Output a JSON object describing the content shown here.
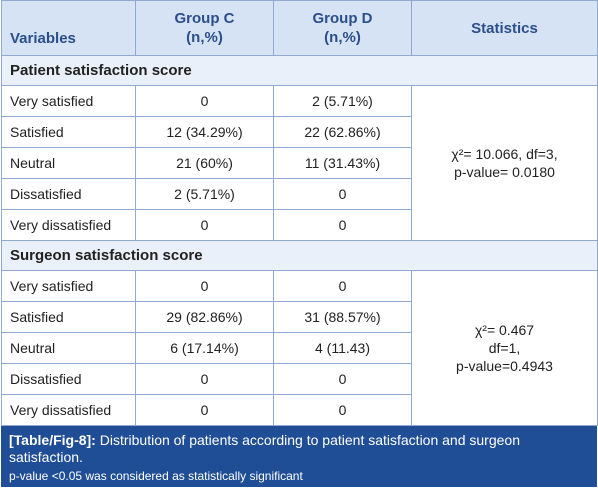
{
  "headers": {
    "variables": "Variables",
    "group_c": [
      "Group C",
      "(n,%)"
    ],
    "group_d": [
      "Group D",
      "(n,%)"
    ],
    "statistics": "Statistics"
  },
  "sections": [
    {
      "title": "Patient satisfaction score",
      "rows": [
        {
          "label": "Very satisfied",
          "c": "0",
          "d": "2 (5.71%)"
        },
        {
          "label": "Satisfied",
          "c": "12 (34.29%)",
          "d": "22 (62.86%)"
        },
        {
          "label": "Neutral",
          "c": "21 (60%)",
          "d": "11 (31.43%)"
        },
        {
          "label": "Dissatisfied",
          "c": "2 (5.71%)",
          "d": "0"
        },
        {
          "label": "Very dissatisfied",
          "c": "0",
          "d": "0"
        }
      ],
      "stats": [
        "χ²= 10.066, df=3,",
        "p-value= 0.0180"
      ]
    },
    {
      "title": "Surgeon satisfaction score",
      "rows": [
        {
          "label": "Very satisfied",
          "c": "0",
          "d": "0"
        },
        {
          "label": "Satisfied",
          "c": "29 (82.86%)",
          "d": "31 (88.57%)"
        },
        {
          "label": "Neutral",
          "c": "6 (17.14%)",
          "d": "4 (11.43)"
        },
        {
          "label": "Dissatisfied",
          "c": "0",
          "d": "0"
        },
        {
          "label": "Very dissatisfied",
          "c": "0",
          "d": "0"
        }
      ],
      "stats": [
        "χ²= 0.467",
        "df=1,",
        "p-value=0.4943"
      ]
    }
  ],
  "caption": {
    "label": "[Table/Fig-8]:",
    "text": " Distribution of patients according to patient satisfaction and surgeon satisfaction.",
    "note": "p-value <0.05 was considered as statistically significant"
  },
  "colors": {
    "header_bg": "#d6e3f4",
    "header_text": "#2b4f8c",
    "section_bg": "#e9f0f9",
    "border": "#8fa9cf",
    "caption_bg": "#1f4e96"
  }
}
